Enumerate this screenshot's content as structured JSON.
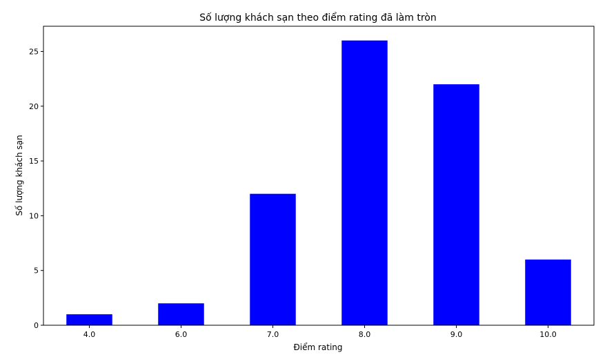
{
  "chart_data": {
    "type": "bar",
    "title": "Số lượng khách sạn theo điểm rating đã làm tròn",
    "xlabel": "Điểm rating",
    "ylabel": "Số lượng khách sạn",
    "categories": [
      "4.0",
      "6.0",
      "7.0",
      "8.0",
      "9.0",
      "10.0"
    ],
    "values": [
      1,
      2,
      12,
      26,
      22,
      6
    ],
    "ylim": [
      0,
      27.3
    ],
    "yticks": [
      0,
      5,
      10,
      15,
      20,
      25
    ],
    "bar_color": "#0000ff",
    "grid": false,
    "legend": "none"
  }
}
